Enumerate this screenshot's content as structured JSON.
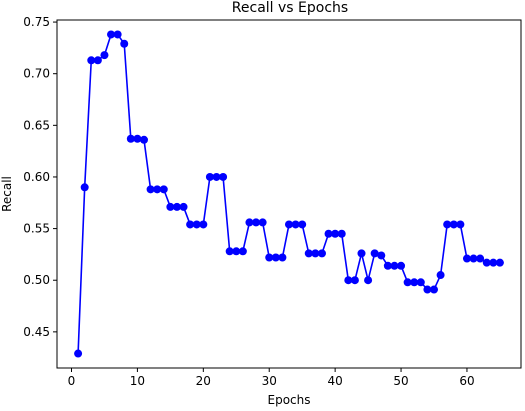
{
  "chart_data": {
    "type": "line",
    "title": "Recall vs Epochs",
    "xlabel": "Epochs",
    "ylabel": "Recall",
    "xlim": [
      -2.2,
      68.2
    ],
    "ylim": [
      0.415,
      0.752
    ],
    "xticks": [
      0,
      10,
      20,
      30,
      40,
      50,
      60
    ],
    "yticks": [
      0.45,
      0.5,
      0.55,
      0.6,
      0.65,
      0.7,
      0.75
    ],
    "xtick_labels": [
      "0",
      "10",
      "20",
      "30",
      "40",
      "50",
      "60"
    ],
    "ytick_labels": [
      "0.45",
      "0.50",
      "0.55",
      "0.60",
      "0.65",
      "0.70",
      "0.75"
    ],
    "grid": false,
    "line_color": "#0000ff",
    "marker": "circle",
    "x": [
      1,
      2,
      3,
      4,
      5,
      6,
      7,
      8,
      9,
      10,
      11,
      12,
      13,
      14,
      15,
      16,
      17,
      18,
      19,
      20,
      21,
      22,
      23,
      24,
      25,
      26,
      27,
      28,
      29,
      30,
      31,
      32,
      33,
      34,
      35,
      36,
      37,
      38,
      39,
      40,
      41,
      42,
      43,
      44,
      45,
      46,
      47,
      48,
      49,
      50,
      51,
      52,
      53,
      54,
      55,
      56,
      57,
      58,
      59,
      60,
      61,
      62,
      63,
      64,
      65
    ],
    "y": [
      0.429,
      0.59,
      0.713,
      0.713,
      0.718,
      0.738,
      0.738,
      0.729,
      0.637,
      0.637,
      0.636,
      0.588,
      0.588,
      0.588,
      0.571,
      0.571,
      0.571,
      0.554,
      0.554,
      0.554,
      0.6,
      0.6,
      0.6,
      0.528,
      0.528,
      0.528,
      0.556,
      0.556,
      0.556,
      0.522,
      0.522,
      0.522,
      0.554,
      0.554,
      0.554,
      0.526,
      0.526,
      0.526,
      0.545,
      0.545,
      0.545,
      0.5,
      0.5,
      0.526,
      0.5,
      0.526,
      0.524,
      0.514,
      0.514,
      0.514,
      0.498,
      0.498,
      0.498,
      0.491,
      0.491,
      0.505,
      0.554,
      0.554,
      0.554,
      0.521,
      0.521,
      0.521,
      0.517,
      0.517,
      0.517
    ]
  }
}
